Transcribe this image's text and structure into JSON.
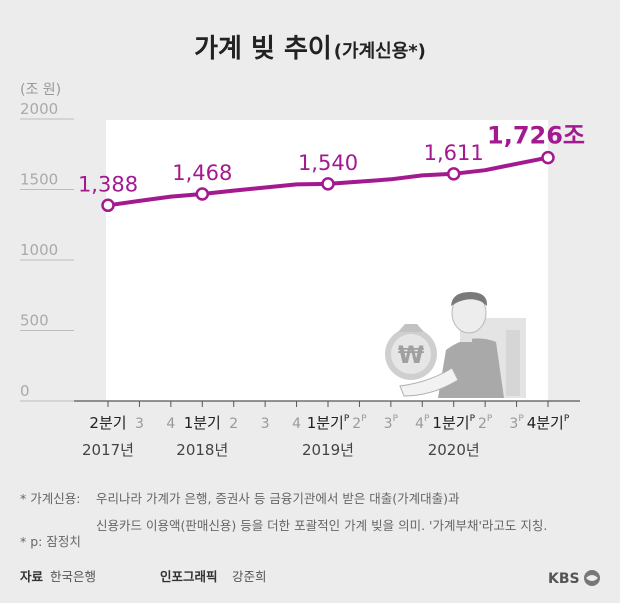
{
  "title": {
    "main": "가계 빚 추이",
    "sub": "(가계신용*)"
  },
  "unit": "(조 원)",
  "chart_data": {
    "type": "line",
    "ylim": [
      0,
      2000
    ],
    "yticks": [
      0,
      500,
      1000,
      1500,
      2000
    ],
    "x_labels": [
      {
        "label": "2분기",
        "major": true,
        "superscript": ""
      },
      {
        "label": "3",
        "major": false,
        "superscript": ""
      },
      {
        "label": "4",
        "major": false,
        "superscript": ""
      },
      {
        "label": "1분기",
        "major": true,
        "superscript": ""
      },
      {
        "label": "2",
        "major": false,
        "superscript": ""
      },
      {
        "label": "3",
        "major": false,
        "superscript": ""
      },
      {
        "label": "4",
        "major": false,
        "superscript": ""
      },
      {
        "label": "1분기",
        "major": true,
        "superscript": "P"
      },
      {
        "label": "2",
        "major": false,
        "superscript": "P"
      },
      {
        "label": "3",
        "major": false,
        "superscript": "P"
      },
      {
        "label": "4",
        "major": false,
        "superscript": "P"
      },
      {
        "label": "1분기",
        "major": true,
        "superscript": "P"
      },
      {
        "label": "2",
        "major": false,
        "superscript": "P"
      },
      {
        "label": "3",
        "major": false,
        "superscript": "P"
      },
      {
        "label": "4분기",
        "major": true,
        "superscript": "P"
      }
    ],
    "years": [
      {
        "label": "2017년",
        "index": 0
      },
      {
        "label": "2018년",
        "index": 3
      },
      {
        "label": "2019년",
        "index": 7
      },
      {
        "label": "2020년",
        "index": 11
      }
    ],
    "values": [
      1388,
      1419,
      1450,
      1468,
      1492,
      1514,
      1536,
      1540,
      1556,
      1572,
      1600,
      1611,
      1637,
      1682,
      1726
    ],
    "labeled_points": [
      {
        "index": 0,
        "text": "1,388"
      },
      {
        "index": 3,
        "text": "1,468"
      },
      {
        "index": 7,
        "text": "1,540"
      },
      {
        "index": 11,
        "text": "1,611"
      },
      {
        "index": 14,
        "text": "1,726조"
      }
    ],
    "line_color": "#a3198f",
    "grid": false
  },
  "footnotes": [
    {
      "marker": "* 가계신용:",
      "text": "우리나라 가계가 은행, 증권사 등 금융기관에서 받은 대출(가계대출)과"
    },
    {
      "marker": "",
      "text": "신용카드 이용액(판매신용) 등을 더한 포괄적인 가계 빚을 의미. '가계부채'라고도 지칭."
    },
    {
      "marker": "* p: 잠정치",
      "text": ""
    }
  ],
  "credits": {
    "source_label": "자료",
    "source": "한국은행",
    "graphic_label": "인포그래픽",
    "graphic": "강준희",
    "brand": "KBS"
  },
  "illustration": {
    "coin_symbol": "₩"
  }
}
